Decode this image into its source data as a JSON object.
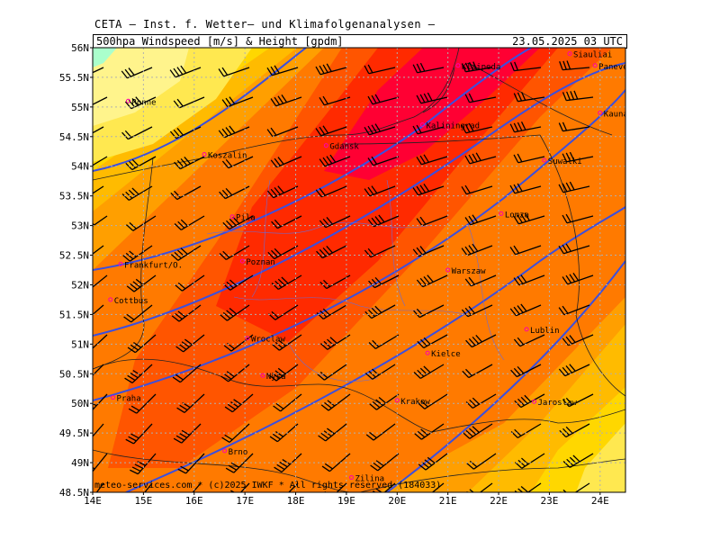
{
  "supertitle": "CETA – Inst. f. Wetter– und Klimafolgenanalysen –",
  "header": {
    "left": "500hpa Windspeed [m/s] & Height [gpdm]",
    "right": "23.05.2025 03 UTC"
  },
  "footer": "meteo-services.com * (c)2025 IWKF * All rights reserved (184033)",
  "axes": {
    "lon_labels": [
      "14E",
      "15E",
      "16E",
      "17E",
      "18E",
      "19E",
      "20E",
      "21E",
      "22E",
      "23E",
      "24E"
    ],
    "lat_labels": [
      "56N",
      "55.5N",
      "55N",
      "54.5N",
      "54N",
      "53.5N",
      "53N",
      "52.5N",
      "52N",
      "51.5N",
      "51N",
      "50.5N",
      "50N",
      "49.5N",
      "49N",
      "48.5N"
    ]
  },
  "cities": [
    {
      "name": "Siauliai",
      "lon": 23.4,
      "lat": 55.9
    },
    {
      "name": "Panevezys",
      "lon": 23.9,
      "lat": 55.7
    },
    {
      "name": "Klaipeda",
      "lon": 21.2,
      "lat": 55.7
    },
    {
      "name": "Kaunas",
      "lon": 24.0,
      "lat": 54.9
    },
    {
      "name": "Ronne",
      "lon": 14.7,
      "lat": 55.1
    },
    {
      "name": "Kaliningrad",
      "lon": 20.5,
      "lat": 54.7
    },
    {
      "name": "Gdansk",
      "lon": 18.6,
      "lat": 54.35
    },
    {
      "name": "Suwalki",
      "lon": 22.9,
      "lat": 54.1
    },
    {
      "name": "Koszalin",
      "lon": 16.2,
      "lat": 54.2
    },
    {
      "name": "Lomza",
      "lon": 22.05,
      "lat": 53.2
    },
    {
      "name": "Pila",
      "lon": 16.75,
      "lat": 53.15
    },
    {
      "name": "Frankfurt/O.",
      "lon": 14.55,
      "lat": 52.35
    },
    {
      "name": "Poznan",
      "lon": 16.95,
      "lat": 52.4
    },
    {
      "name": "Warszaw",
      "lon": 21.0,
      "lat": 52.25
    },
    {
      "name": "Cottbus",
      "lon": 14.35,
      "lat": 51.75
    },
    {
      "name": "Lublin",
      "lon": 22.55,
      "lat": 51.25
    },
    {
      "name": "Wroclaw",
      "lon": 17.05,
      "lat": 51.1
    },
    {
      "name": "Kielce",
      "lon": 20.6,
      "lat": 50.85
    },
    {
      "name": "Nysa",
      "lon": 17.35,
      "lat": 50.47
    },
    {
      "name": "Praha",
      "lon": 14.4,
      "lat": 50.1
    },
    {
      "name": "Krakow",
      "lon": 20.0,
      "lat": 50.05
    },
    {
      "name": "Jaroslaw",
      "lon": 22.7,
      "lat": 50.03
    },
    {
      "name": "Brno",
      "lon": 16.6,
      "lat": 49.2
    },
    {
      "name": "Zilina",
      "lon": 19.1,
      "lat": 48.75
    }
  ],
  "colors": {
    "very_light_yellow": "#fff48c",
    "light_yellow": "#ffe850",
    "yellow": "#ffd700",
    "gold": "#ffbb00",
    "orange": "#ff9f00",
    "dark_orange": "#ff7a00",
    "orange_red": "#ff5500",
    "red": "#ff2a00",
    "crimson": "#ff0033",
    "cyan_green": "#aaffcc",
    "contour": "#3a4fe0",
    "city_marker": "#ff00aa"
  }
}
